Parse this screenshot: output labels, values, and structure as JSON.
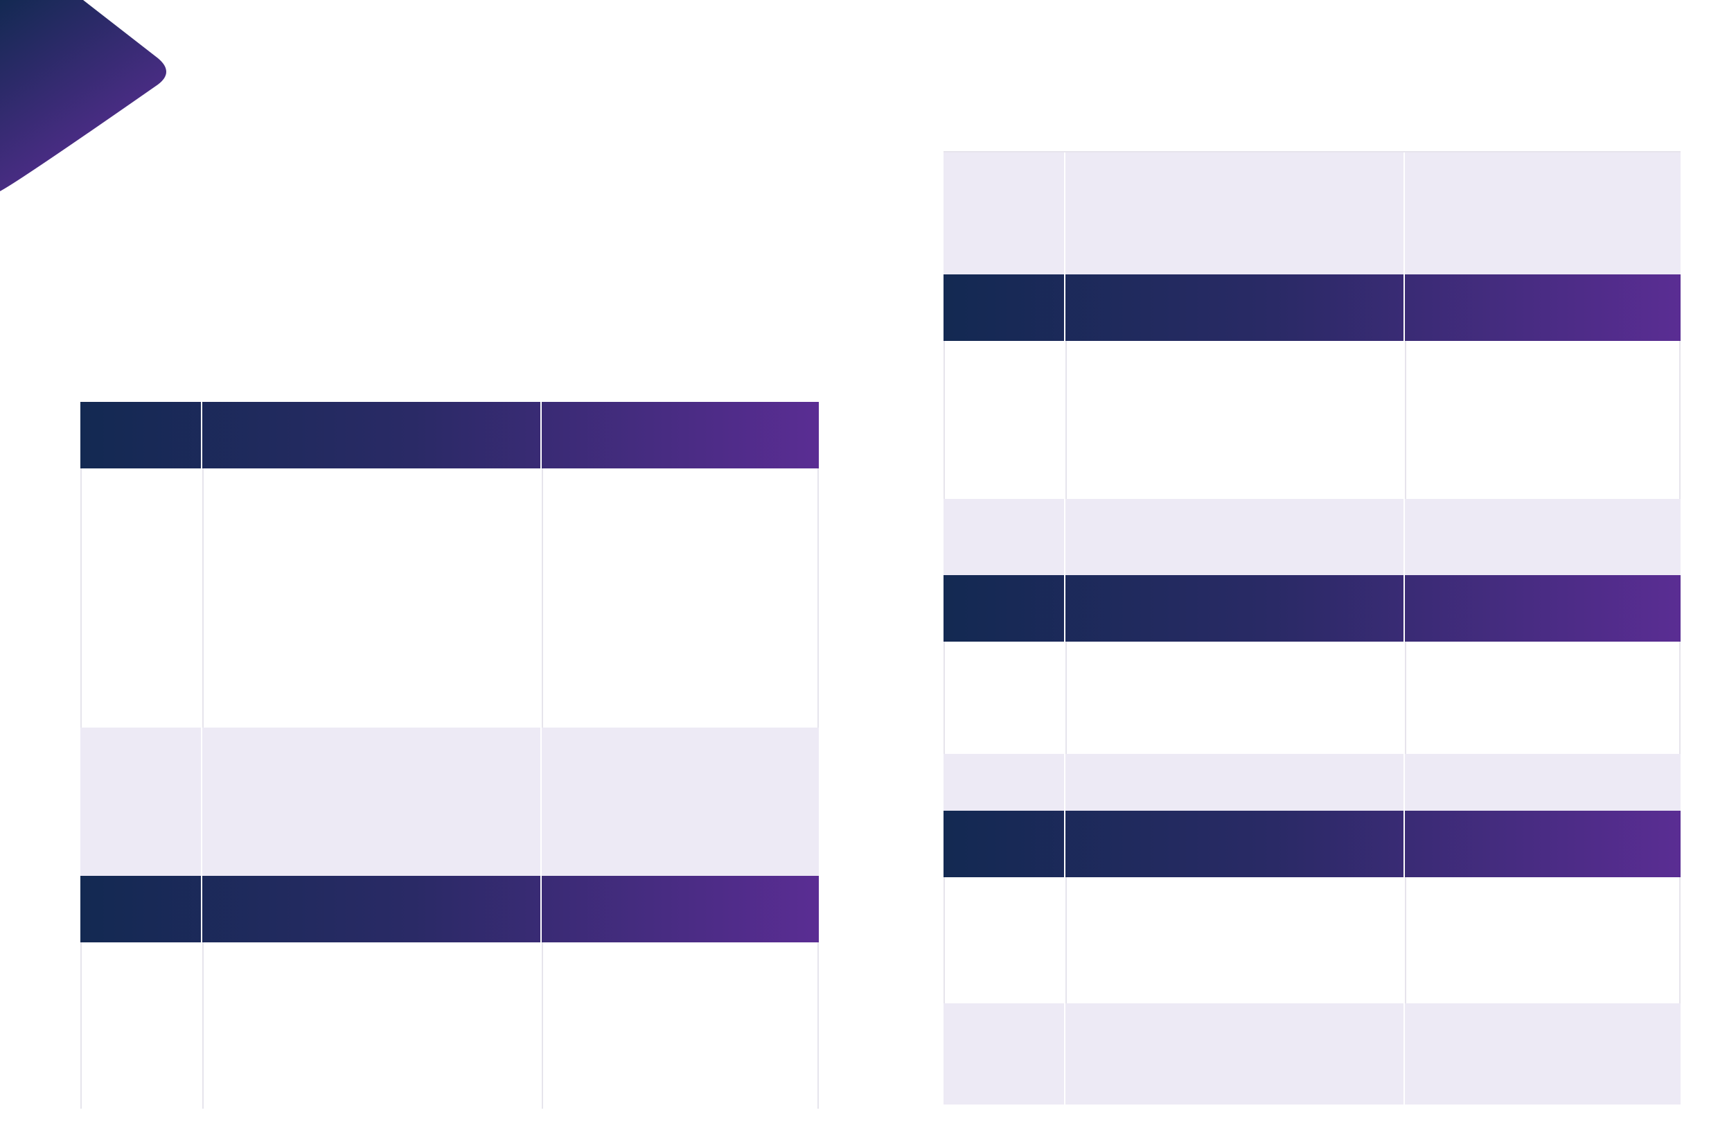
{
  "brand": {
    "primary_dark": "#132952",
    "primary_mid": "#2a2a66",
    "accent_purple": "#5a2d93",
    "row_tint": "#edeaf5",
    "grid_line": "#e6e4ec"
  },
  "decoration": {
    "corner_shape": "corner-arrow-shape"
  },
  "left_table": {
    "columns": 3,
    "rows": [
      "header",
      "body",
      "body-tint",
      "header",
      "body"
    ]
  },
  "right_table": {
    "columns": 3,
    "rows": [
      "body-tint",
      "header",
      "body",
      "body-tint",
      "header",
      "body",
      "body-tint",
      "header",
      "body",
      "body-tint"
    ]
  }
}
